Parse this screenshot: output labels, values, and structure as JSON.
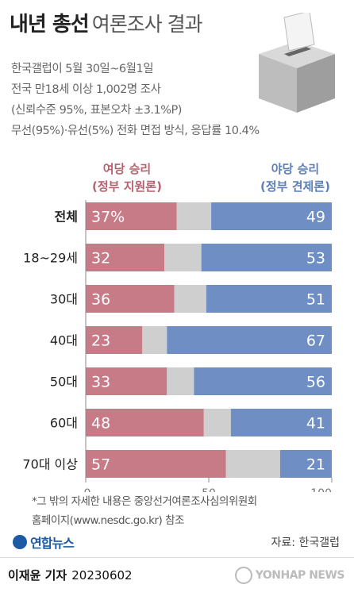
{
  "header": {
    "title_bold": "내년 총선",
    "title_light": "여론조사 결과"
  },
  "info_lines": [
    "한국갤럽이 5월 30일~6월1일",
    "전국 만18세 이상 1,002명 조사",
    "(신뢰수준 95%, 표본오차 ±3.1%P)",
    "무선(95%)·유선(5%) 전화 면접 방식, 응답률 10.4%"
  ],
  "legend": {
    "ruling_line1": "여당 승리",
    "ruling_line2": "(정부 지원론)",
    "opposition_line1": "야당 승리",
    "opposition_line2": "(정부 견제론)"
  },
  "colors": {
    "ruling": "#c77b87",
    "undecided": "#cfcfcf",
    "opposition": "#6f8fc4"
  },
  "chart_data": {
    "type": "bar",
    "orientation": "horizontal",
    "stacked": true,
    "categories": [
      "전체",
      "18~29세",
      "30대",
      "40대",
      "50대",
      "60대",
      "70대 이상"
    ],
    "series": [
      {
        "name": "여당 승리 (정부 지원론)",
        "values": [
          37,
          32,
          36,
          23,
          33,
          48,
          57
        ],
        "labels": [
          "37%",
          "32",
          "36",
          "23",
          "33",
          "48",
          "57"
        ]
      },
      {
        "name": "",
        "values": [
          14,
          15,
          13,
          10,
          11,
          11,
          22
        ]
      },
      {
        "name": "야당 승리 (정부 견제론)",
        "values": [
          49,
          53,
          51,
          67,
          56,
          41,
          21
        ],
        "labels": [
          "49",
          "53",
          "51",
          "67",
          "56",
          "41",
          "21"
        ]
      }
    ],
    "xlim": [
      0,
      100
    ],
    "xticks": [
      "0",
      "50",
      "100"
    ]
  },
  "footnote_lines": [
    "*그 밖의 자세한 내용은 중앙선거여론조사심의위원회",
    "홈페이지(www.nesdc.go.kr) 참조"
  ],
  "source": "자료: 한국갤럽",
  "logo_text": "연합뉴스",
  "reporter": "이재윤 기자",
  "date": "20230602",
  "watermark": "YONHAP NEWS"
}
